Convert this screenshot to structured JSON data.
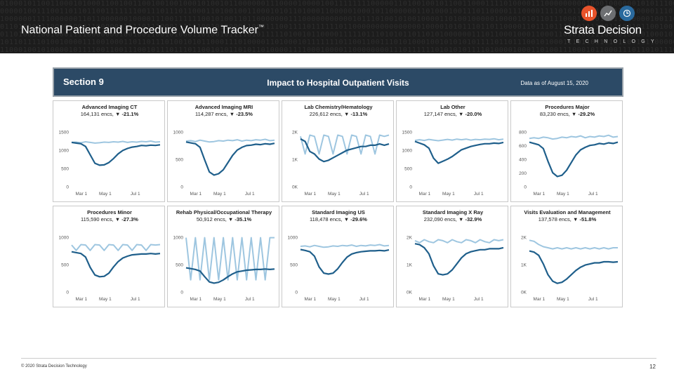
{
  "header": {
    "title": "National Patient and Procedure Volume Tracker",
    "title_mark": "™",
    "brand_name": "Strata Decision",
    "brand_sub": "TECHNOLOGY",
    "icons": [
      "bar-chart-icon",
      "trend-line-icon",
      "clock-icon"
    ],
    "icon_colors": [
      "#e8532b",
      "#6d6f72",
      "#2a6a9e"
    ]
  },
  "section": {
    "label": "Section 9",
    "title": "Impact to Hospital Outpatient Visits",
    "data_as_of": "Data as of August 15, 2020"
  },
  "colors": {
    "current": "#1f5f8b",
    "prior": "#9ec6e0",
    "header_bg": "#2c4a66"
  },
  "footer": {
    "copyright": "© 2020 Strata Decision Technology",
    "page": "12"
  },
  "chart_data": [
    {
      "type": "line",
      "title": "Advanced Imaging CT",
      "subtitle": "164,131 encs,",
      "change": "▼ -21.1%",
      "x_labels": [
        "Mar 1",
        "May 1",
        "Jul 1"
      ],
      "y_ticks": [
        "1500",
        "1000",
        "500",
        "0"
      ],
      "ylim": [
        0,
        1800
      ],
      "series": [
        {
          "values": [
            1320,
            1300,
            1280,
            1200,
            950,
            700,
            640,
            650,
            720,
            840,
            980,
            1080,
            1140,
            1180,
            1200,
            1230,
            1220,
            1240,
            1230,
            1250
          ]
        },
        {
          "values": [
            1320,
            1330,
            1310,
            1340,
            1320,
            1300,
            1310,
            1330,
            1320,
            1340,
            1330,
            1350,
            1320,
            1340,
            1330,
            1350,
            1340,
            1360,
            1330,
            1340
          ]
        }
      ]
    },
    {
      "type": "line",
      "title": "Advanced Imaging MRI",
      "subtitle": "114,287 encs,",
      "change": "▼ -23.5%",
      "x_labels": [
        "Mar 1",
        "May 1",
        "Jul 1"
      ],
      "y_ticks": [
        "1000",
        "500",
        "0"
      ],
      "ylim": [
        0,
        1350
      ],
      "series": [
        {
          "values": [
            1000,
            980,
            960,
            880,
            600,
            330,
            260,
            290,
            380,
            540,
            700,
            820,
            880,
            920,
            930,
            950,
            940,
            960,
            950,
            970
          ]
        },
        {
          "values": [
            1020,
            1030,
            1010,
            1040,
            1020,
            1000,
            1010,
            1030,
            1020,
            1040,
            1030,
            1050,
            1020,
            1040,
            1030,
            1050,
            1040,
            1060,
            1030,
            1040
          ]
        }
      ]
    },
    {
      "type": "line",
      "title": "Lab Chemistry/Hematology",
      "subtitle": "226,612 encs,",
      "change": "▼ -13.1%",
      "x_labels": [
        "Mar 1",
        "May 1",
        "Jul 1"
      ],
      "y_ticks": [
        "2K",
        "1K",
        "0K"
      ],
      "ylim": [
        0,
        2400
      ],
      "series": [
        {
          "values": [
            1900,
            1800,
            1400,
            1300,
            1100,
            1000,
            1050,
            1150,
            1250,
            1350,
            1450,
            1500,
            1550,
            1600,
            1600,
            1650,
            1650,
            1700,
            1650,
            1700
          ]
        },
        {
          "values": [
            2000,
            1300,
            2050,
            2000,
            1300,
            2050,
            2000,
            1300,
            2050,
            2000,
            1300,
            2050,
            2000,
            1300,
            2050,
            2000,
            1300,
            2050,
            2000,
            2050
          ]
        }
      ]
    },
    {
      "type": "line",
      "title": "Lab Other",
      "subtitle": "127,147 encs,",
      "change": "▼ -20.0%",
      "x_labels": [
        "Mar 1",
        "May 1",
        "Jul 1"
      ],
      "y_ticks": [
        "1500",
        "1000",
        "500",
        "0"
      ],
      "ylim": [
        0,
        1800
      ],
      "series": [
        {
          "values": [
            1350,
            1300,
            1250,
            1150,
            850,
            700,
            760,
            820,
            900,
            1000,
            1100,
            1150,
            1200,
            1230,
            1260,
            1280,
            1280,
            1300,
            1290,
            1320
          ]
        },
        {
          "values": [
            1380,
            1400,
            1380,
            1410,
            1390,
            1370,
            1390,
            1410,
            1390,
            1420,
            1400,
            1420,
            1390,
            1410,
            1400,
            1420,
            1410,
            1430,
            1400,
            1420
          ]
        }
      ]
    },
    {
      "type": "line",
      "title": "Procedures Major",
      "subtitle": "83,230 encs,",
      "change": "▼ -29.2%",
      "x_labels": [
        "Mar 1",
        "May 1",
        "Jul 1"
      ],
      "y_ticks": [
        "800",
        "600",
        "400",
        "200",
        "0"
      ],
      "ylim": [
        0,
        950
      ],
      "series": [
        {
          "values": [
            700,
            680,
            660,
            600,
            400,
            220,
            160,
            180,
            260,
            380,
            500,
            580,
            620,
            650,
            660,
            680,
            670,
            690,
            680,
            700
          ]
        },
        {
          "values": [
            760,
            770,
            760,
            780,
            770,
            750,
            760,
            780,
            770,
            790,
            780,
            800,
            770,
            790,
            780,
            800,
            790,
            810,
            780,
            790
          ]
        }
      ]
    },
    {
      "type": "line",
      "title": "Procedures Minor",
      "subtitle": "115,590 encs,",
      "change": "▼ -27.3%",
      "x_labels": [
        "Mar 1",
        "May 1",
        "Jul 1"
      ],
      "y_ticks": [
        "1000",
        "500",
        "0"
      ],
      "ylim": [
        0,
        1350
      ],
      "series": [
        {
          "values": [
            900,
            880,
            860,
            780,
            550,
            380,
            340,
            350,
            420,
            560,
            680,
            760,
            800,
            830,
            840,
            850,
            850,
            860,
            850,
            860
          ]
        },
        {
          "values": [
            1050,
            930,
            1060,
            1050,
            930,
            1060,
            1050,
            930,
            1060,
            1050,
            930,
            1060,
            1050,
            930,
            1060,
            1050,
            930,
            1060,
            1050,
            1060
          ]
        }
      ]
    },
    {
      "type": "line",
      "title": "Rehab Physical/Occupational Therapy",
      "subtitle": "50,912 encs,",
      "change": "▼ -35.1%",
      "x_labels": [
        "Mar 1",
        "May 1",
        "Jul 1"
      ],
      "y_ticks": [
        "1000",
        "500",
        "0"
      ],
      "ylim": [
        0,
        1500
      ],
      "series": [
        {
          "values": [
            600,
            580,
            560,
            520,
            380,
            250,
            220,
            240,
            300,
            380,
            450,
            500,
            520,
            540,
            550,
            560,
            560,
            570,
            560,
            570
          ]
        },
        {
          "values": [
            1350,
            300,
            1350,
            300,
            1350,
            300,
            1350,
            300,
            1350,
            300,
            1350,
            300,
            1350,
            300,
            1350,
            300,
            1350,
            300,
            1350,
            1350
          ]
        }
      ]
    },
    {
      "type": "line",
      "title": "Standard Imaging US",
      "subtitle": "118,478 encs,",
      "change": "▼ -29.6%",
      "x_labels": [
        "Mar 1",
        "May 1",
        "Jul 1"
      ],
      "y_ticks": [
        "1000",
        "500",
        "0"
      ],
      "ylim": [
        0,
        1350
      ],
      "series": [
        {
          "values": [
            950,
            930,
            900,
            800,
            560,
            420,
            400,
            420,
            520,
            660,
            780,
            850,
            880,
            900,
            910,
            920,
            920,
            930,
            920,
            940
          ]
        },
        {
          "values": [
            1020,
            1030,
            1010,
            1040,
            1020,
            1000,
            1010,
            1030,
            1020,
            1040,
            1030,
            1050,
            1020,
            1040,
            1030,
            1050,
            1040,
            1060,
            1030,
            1040
          ]
        }
      ]
    },
    {
      "type": "line",
      "title": "Standard Imaging X Ray",
      "subtitle": "232,090 encs,",
      "change": "▼ -32.9%",
      "x_labels": [
        "Mar 1",
        "May 1",
        "Jul 1"
      ],
      "y_ticks": [
        "2K",
        "1K",
        "0K"
      ],
      "ylim": [
        0,
        3000
      ],
      "series": [
        {
          "values": [
            2400,
            2350,
            2200,
            1900,
            1300,
            900,
            850,
            900,
            1100,
            1400,
            1700,
            1900,
            2000,
            2050,
            2100,
            2100,
            2150,
            2150,
            2150,
            2200
          ]
        },
        {
          "values": [
            2550,
            2450,
            2600,
            2500,
            2450,
            2600,
            2550,
            2450,
            2600,
            2500,
            2450,
            2600,
            2550,
            2450,
            2600,
            2500,
            2450,
            2600,
            2550,
            2600
          ]
        }
      ]
    },
    {
      "type": "line",
      "title": "Visits Evaluation and Management",
      "subtitle": "137,578 encs,",
      "change": "▼ -51.8%",
      "x_labels": [
        "Mar 1",
        "May 1",
        "Jul 1"
      ],
      "y_ticks": [
        "2K",
        "1K",
        "0K"
      ],
      "ylim": [
        0,
        2800
      ],
      "series": [
        {
          "values": [
            1900,
            1850,
            1700,
            1300,
            800,
            500,
            400,
            450,
            600,
            800,
            1000,
            1150,
            1250,
            1300,
            1350,
            1350,
            1400,
            1400,
            1380,
            1400
          ]
        },
        {
          "values": [
            2400,
            2350,
            2200,
            2100,
            2050,
            2000,
            2050,
            2000,
            2050,
            2000,
            2050,
            2000,
            2050,
            2000,
            2050,
            2000,
            2050,
            2000,
            2050,
            2050
          ]
        }
      ]
    }
  ]
}
